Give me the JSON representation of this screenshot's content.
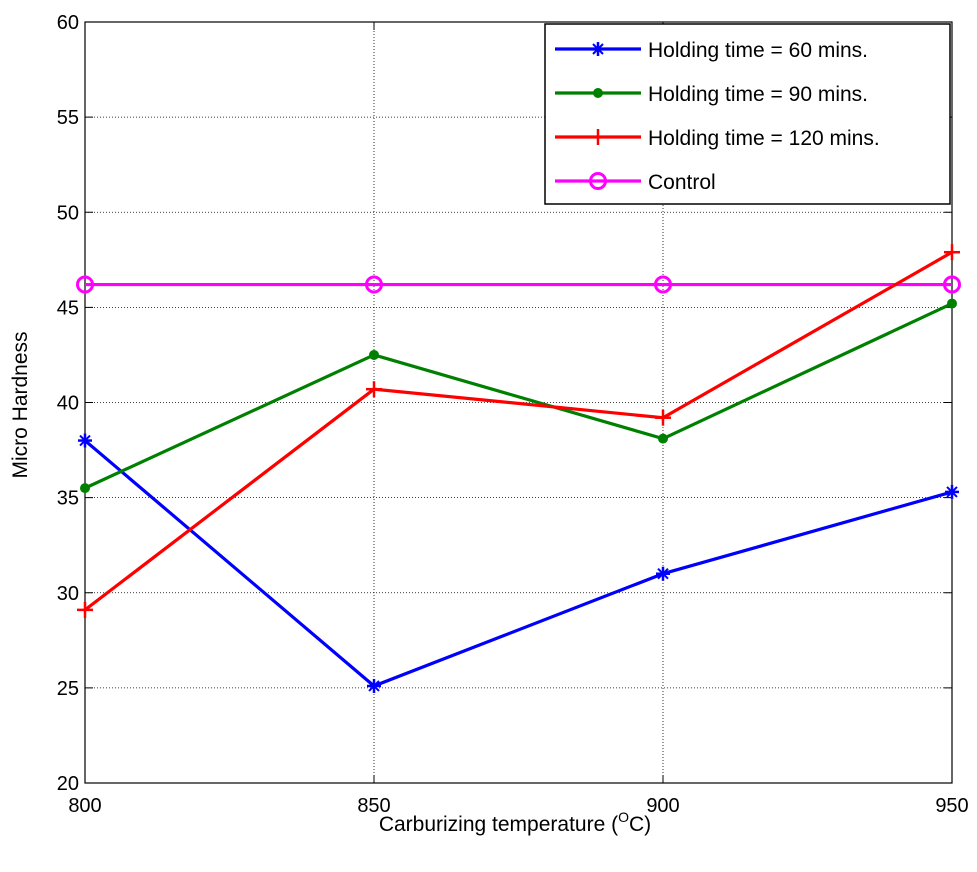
{
  "chart_data": {
    "type": "line",
    "title": "",
    "xlabel": "Carburizing temperature (",
    "xlabel_sup": "O",
    "xlabel_suffix": "C)",
    "ylabel": "Micro Hardness",
    "x": [
      800,
      850,
      900,
      950
    ],
    "xlim": [
      800,
      950
    ],
    "ylim": [
      20,
      60
    ],
    "xticks": [
      "800",
      "850",
      "900",
      "950"
    ],
    "yticks": [
      "20",
      "25",
      "30",
      "35",
      "40",
      "45",
      "50",
      "55",
      "60"
    ],
    "grid": true,
    "legend_position": "top-right",
    "series": [
      {
        "name": "Holding time = 60 mins.",
        "values": [
          38.0,
          25.1,
          31.0,
          35.3
        ],
        "color": "#0000ff",
        "marker": "star"
      },
      {
        "name": "Holding time = 90 mins.",
        "values": [
          35.5,
          42.5,
          38.1,
          45.2
        ],
        "color": "#008000",
        "marker": "dot"
      },
      {
        "name": "Holding time = 120 mins.",
        "values": [
          29.1,
          40.7,
          39.2,
          47.9
        ],
        "color": "#ff0000",
        "marker": "plus"
      },
      {
        "name": "Control",
        "values": [
          46.2,
          46.2,
          46.2,
          46.2
        ],
        "color": "#ff00ff",
        "marker": "circle"
      }
    ]
  }
}
